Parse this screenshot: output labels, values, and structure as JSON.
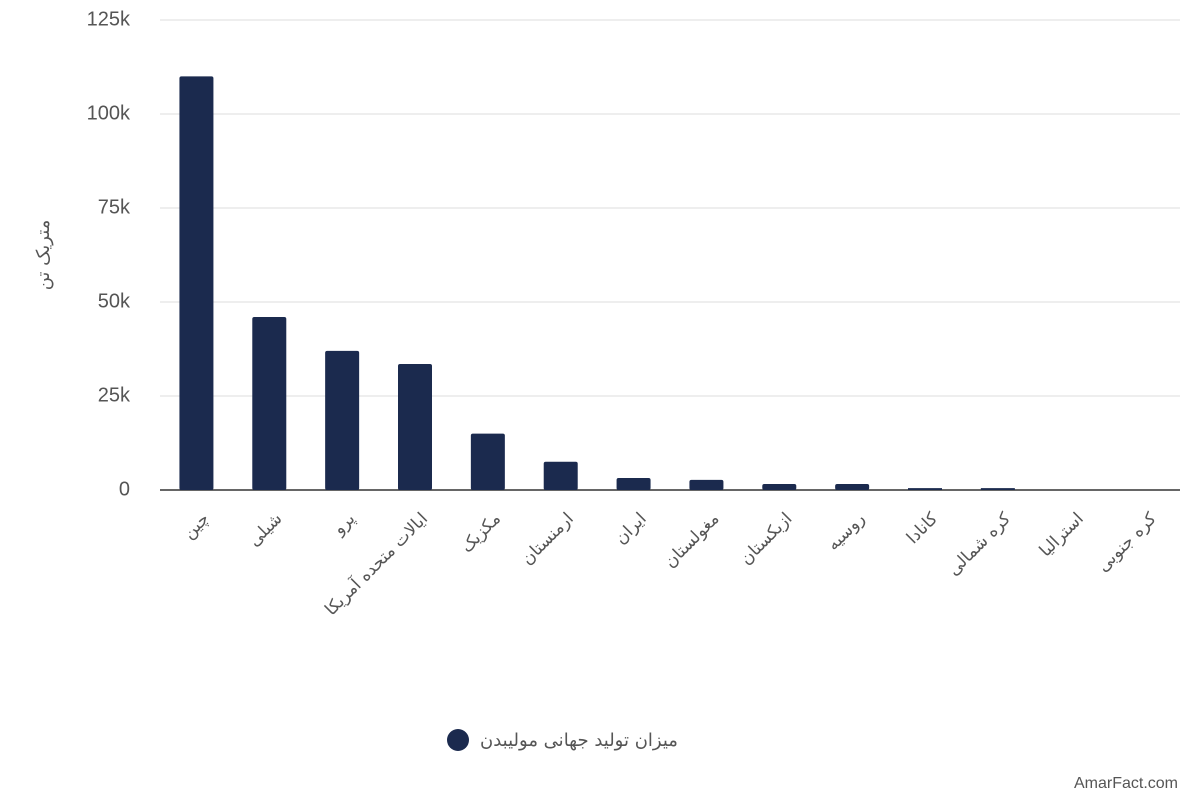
{
  "chart_data": {
    "type": "bar",
    "y_axis_title": "متریک تن",
    "categories": [
      "چین",
      "شیلی",
      "پرو",
      "ایالات متحده آمریکا",
      "مکزیک",
      "ارمنستان",
      "ایران",
      "مغولستان",
      "ازبکستان",
      "روسیه",
      "کانادا",
      "کره شمالی",
      "استرالیا",
      "کره جنوبی"
    ],
    "series": [
      {
        "name": "میزان تولید جهانی مولیبدن",
        "color": "#1b2a4e",
        "values": [
          110000,
          46000,
          37000,
          33500,
          15000,
          7500,
          3200,
          2700,
          1600,
          1600,
          500,
          500,
          0,
          0
        ]
      }
    ],
    "ylim": [
      0,
      125000
    ],
    "yticks": [
      0,
      {
        "value": 25000,
        "label": "25k"
      },
      {
        "value": 50000,
        "label": "50k"
      },
      {
        "value": 75000,
        "label": "75k"
      },
      {
        "value": 100000,
        "label": "100k"
      },
      {
        "value": 125000,
        "label": "125k"
      }
    ],
    "grid": true,
    "watermark": "AmarFact.com"
  }
}
